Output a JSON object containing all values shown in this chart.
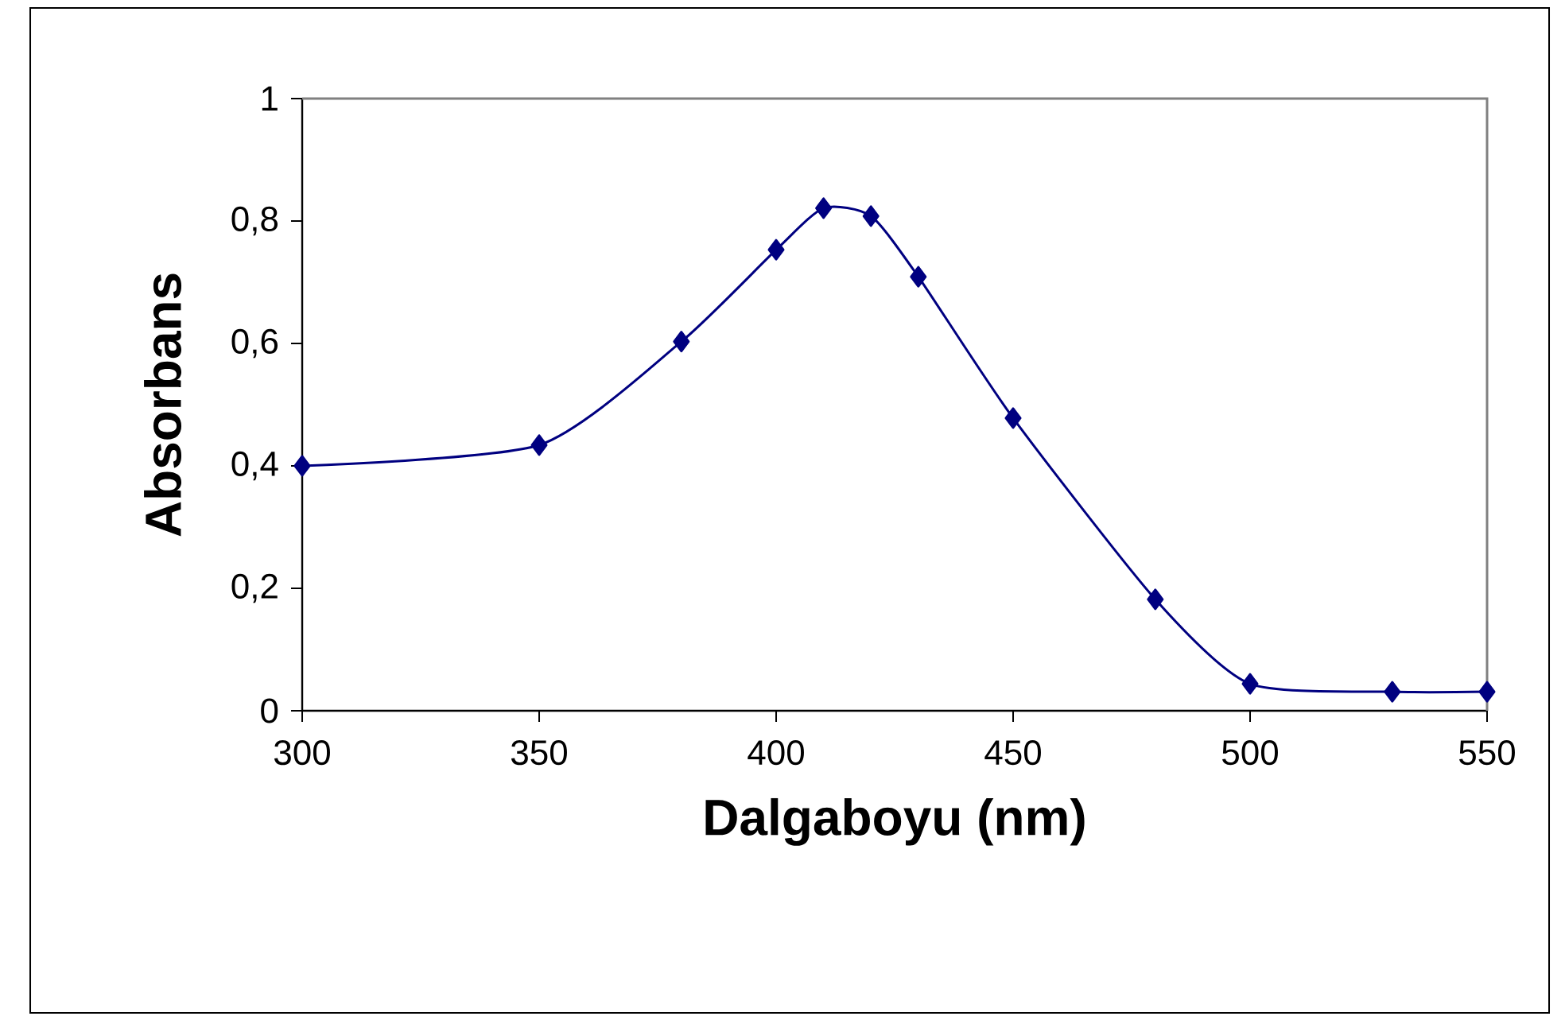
{
  "chart_data": {
    "type": "line",
    "xlabel": "Dalgaboyu (nm)",
    "ylabel": "Absorbans",
    "x": [
      300,
      350,
      380,
      400,
      410,
      420,
      430,
      450,
      480,
      500,
      530,
      550
    ],
    "values": [
      0.4,
      0.434,
      0.603,
      0.753,
      0.821,
      0.808,
      0.709,
      0.478,
      0.182,
      0.044,
      0.031,
      0.031
    ],
    "color": "#000080",
    "marker": "diamond",
    "line_style": "solid",
    "xlim": [
      300,
      550
    ],
    "ylim": [
      0,
      1
    ],
    "xticks": [
      300,
      350,
      400,
      450,
      500,
      550
    ],
    "yticks": [
      0,
      {
        "value": 0.2,
        "label": "0,2"
      },
      {
        "value": 0.4,
        "label": "0,4"
      },
      {
        "value": 0.6,
        "label": "0,6"
      },
      {
        "value": 0.8,
        "label": "0,8"
      },
      1
    ]
  }
}
